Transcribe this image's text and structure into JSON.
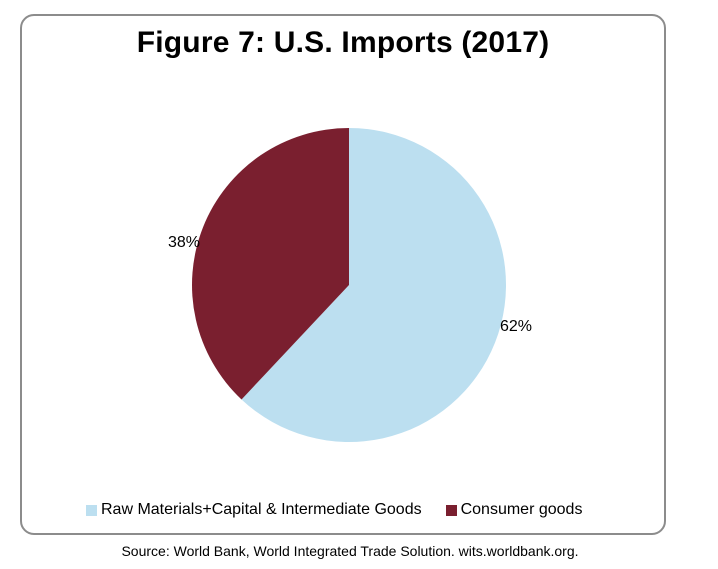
{
  "title": "Figure 7: U.S. Imports (2017)",
  "source": "Source: World Bank, World Integrated Trade Solution. wits.worldbank.org.",
  "chart_data": {
    "type": "pie",
    "title": "Figure 7: U.S. Imports (2017)",
    "unit": "%",
    "legend_position": "bottom",
    "slices": [
      {
        "name": "Raw Materials+Capital & Intermediate Goods",
        "value": 62,
        "label": "62%",
        "color": "#bcdff0"
      },
      {
        "name": "Consumer goods",
        "value": 38,
        "label": "38%",
        "color": "#7a1f2f"
      }
    ]
  }
}
